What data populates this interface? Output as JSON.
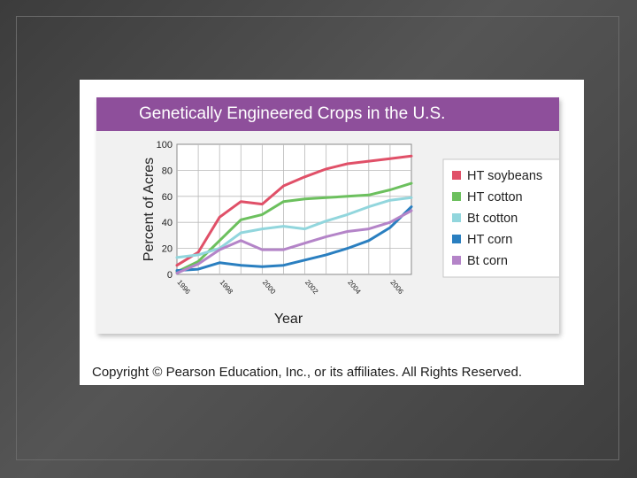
{
  "chart_data": {
    "type": "line",
    "title": "Genetically Engineered Crops in the U.S.",
    "xlabel": "Year",
    "ylabel": "Percent of Acres",
    "xlim": [
      1996,
      2007
    ],
    "ylim": [
      0,
      100
    ],
    "x": [
      1996,
      1997,
      1998,
      1999,
      2000,
      2001,
      2002,
      2003,
      2004,
      2005,
      2006,
      2007
    ],
    "x_ticks": [
      "1996",
      "1998",
      "2000",
      "2002",
      "2004",
      "2006"
    ],
    "y_ticks": [
      "0",
      "20",
      "40",
      "60",
      "80",
      "100"
    ],
    "grid": true,
    "legend_position": "right",
    "series": [
      {
        "name": "HT soybeans",
        "color": "#e05068",
        "values": [
          7,
          17,
          44,
          56,
          54,
          68,
          75,
          81,
          85,
          87,
          89,
          91
        ]
      },
      {
        "name": "HT cotton",
        "color": "#6cc05e",
        "values": [
          2,
          10,
          26,
          42,
          46,
          56,
          58,
          59,
          60,
          61,
          65,
          70
        ]
      },
      {
        "name": "Bt cotton",
        "color": "#92d6dd",
        "values": [
          13,
          15,
          20,
          32,
          35,
          37,
          35,
          41,
          46,
          52,
          57,
          59
        ]
      },
      {
        "name": "HT corn",
        "color": "#2a7fc0",
        "values": [
          3,
          4,
          9,
          7,
          6,
          7,
          11,
          15,
          20,
          26,
          36,
          52
        ]
      },
      {
        "name": "Bt corn",
        "color": "#b484c8",
        "values": [
          1,
          8,
          19,
          26,
          19,
          19,
          24,
          29,
          33,
          35,
          40,
          49
        ]
      }
    ]
  },
  "copyright": "Copyright © Pearson Education, Inc., or its affiliates.  All Rights Reserved."
}
